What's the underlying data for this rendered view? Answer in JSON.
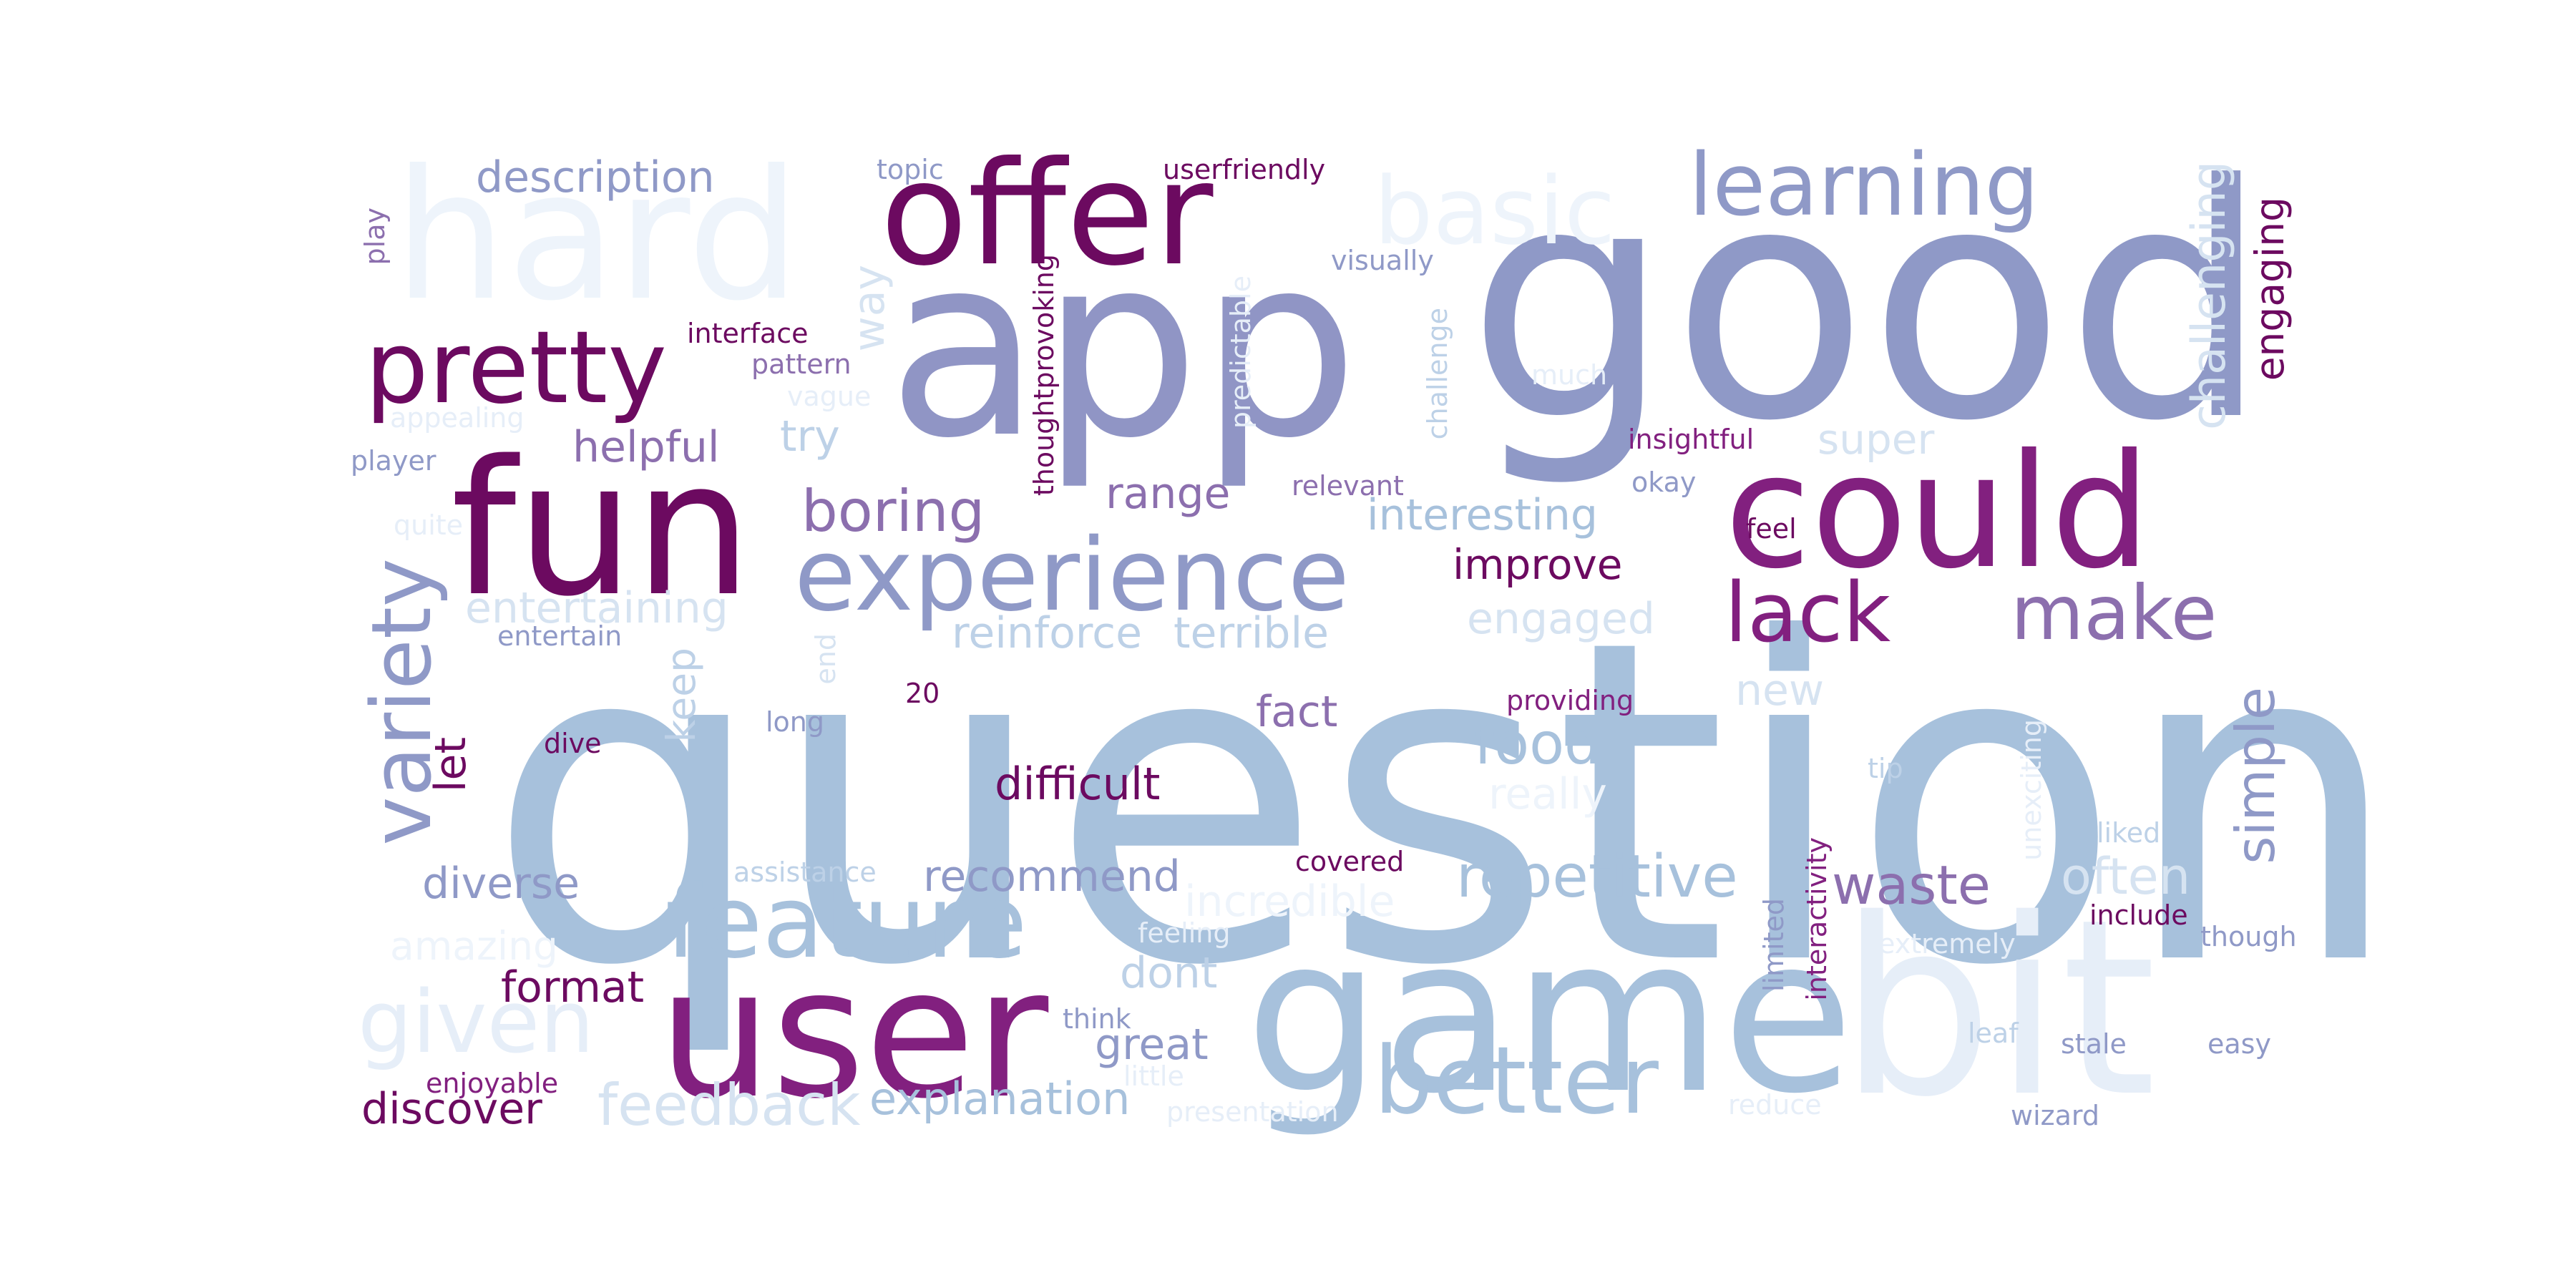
{
  "palette": {
    "plum": "#6c0a60",
    "purple": "#82207f",
    "mauve": "#8c6fae",
    "lavender": "#9095c5",
    "periwinkle": "#8f99c7",
    "steel": "#a7c1dc",
    "paleblue": "#bdd1e7",
    "pale": "#d6e3f1",
    "faint": "#e6eef8",
    "ghost": "#eef4fb"
  },
  "words": [
    {
      "text": "question",
      "color": "steel"
    },
    {
      "text": "good",
      "color": "periwinkle"
    },
    {
      "text": "app",
      "color": "lavender"
    },
    {
      "text": "game",
      "color": "steel"
    },
    {
      "text": "bit",
      "color": "faint"
    },
    {
      "text": "hard",
      "color": "ghost"
    },
    {
      "text": "fun",
      "color": "plum"
    },
    {
      "text": "user",
      "color": "purple"
    },
    {
      "text": "offer",
      "color": "plum"
    },
    {
      "text": "could",
      "color": "purple"
    },
    {
      "text": "experience",
      "color": "periwinkle"
    },
    {
      "text": "pretty",
      "color": "plum"
    },
    {
      "text": "feature",
      "color": "steel"
    },
    {
      "text": "learning",
      "color": "periwinkle"
    },
    {
      "text": "basic",
      "color": "ghost"
    },
    {
      "text": "better",
      "color": "steel"
    },
    {
      "text": "given",
      "color": "faint"
    },
    {
      "text": "variety",
      "color": "periwinkle"
    },
    {
      "text": "lack",
      "color": "purple"
    },
    {
      "text": "make",
      "color": "mauve"
    },
    {
      "text": "boring",
      "color": "mauve"
    },
    {
      "text": "repetitive",
      "color": "steel"
    },
    {
      "text": "simple",
      "color": "periwinkle"
    },
    {
      "text": "challenging",
      "color": "pale"
    },
    {
      "text": "engaging",
      "color": "plum"
    },
    {
      "text": "description",
      "color": "periwinkle"
    },
    {
      "text": "helpful",
      "color": "mauve"
    },
    {
      "text": "interesting",
      "color": "steel"
    },
    {
      "text": "improve",
      "color": "plum"
    },
    {
      "text": "entertaining",
      "color": "pale"
    },
    {
      "text": "reinforce",
      "color": "paleblue"
    },
    {
      "text": "terrible",
      "color": "paleblue"
    },
    {
      "text": "engaged",
      "color": "pale"
    },
    {
      "text": "waste",
      "color": "mauve"
    },
    {
      "text": "often",
      "color": "pale"
    },
    {
      "text": "difficult",
      "color": "plum"
    },
    {
      "text": "food",
      "color": "steel"
    },
    {
      "text": "fact",
      "color": "mauve"
    },
    {
      "text": "range",
      "color": "mauve"
    },
    {
      "text": "try",
      "color": "paleblue"
    },
    {
      "text": "super",
      "color": "pale"
    },
    {
      "text": "way",
      "color": "pale"
    },
    {
      "text": "keep",
      "color": "paleblue"
    },
    {
      "text": "let",
      "color": "plum"
    },
    {
      "text": "diverse",
      "color": "periwinkle"
    },
    {
      "text": "recommend",
      "color": "periwinkle"
    },
    {
      "text": "incredible",
      "color": "ghost"
    },
    {
      "text": "format",
      "color": "plum"
    },
    {
      "text": "dont",
      "color": "paleblue"
    },
    {
      "text": "great",
      "color": "periwinkle"
    },
    {
      "text": "feedback",
      "color": "pale"
    },
    {
      "text": "explanation",
      "color": "steel"
    },
    {
      "text": "discover",
      "color": "plum"
    },
    {
      "text": "amazing",
      "color": "ghost"
    },
    {
      "text": "new",
      "color": "pale"
    },
    {
      "text": "really",
      "color": "ghost"
    },
    {
      "text": "interface",
      "color": "plum"
    },
    {
      "text": "pattern",
      "color": "mauve"
    },
    {
      "text": "vague",
      "color": "faint"
    },
    {
      "text": "appealing",
      "color": "faint"
    },
    {
      "text": "player",
      "color": "periwinkle"
    },
    {
      "text": "quite",
      "color": "faint"
    },
    {
      "text": "entertain",
      "color": "periwinkle"
    },
    {
      "text": "topic",
      "color": "periwinkle"
    },
    {
      "text": "userfriendly",
      "color": "plum"
    },
    {
      "text": "visually",
      "color": "periwinkle"
    },
    {
      "text": "thoughtprovoking",
      "color": "plum"
    },
    {
      "text": "predictable",
      "color": "faint"
    },
    {
      "text": "challenge",
      "color": "paleblue"
    },
    {
      "text": "much",
      "color": "faint"
    },
    {
      "text": "insightful",
      "color": "purple"
    },
    {
      "text": "okay",
      "color": "periwinkle"
    },
    {
      "text": "relevant",
      "color": "mauve"
    },
    {
      "text": "feel",
      "color": "plum"
    },
    {
      "text": "play",
      "color": "mauve"
    },
    {
      "text": "end",
      "color": "pale"
    },
    {
      "text": "20",
      "color": "plum"
    },
    {
      "text": "long",
      "color": "periwinkle"
    },
    {
      "text": "dive",
      "color": "plum"
    },
    {
      "text": "providing",
      "color": "purple"
    },
    {
      "text": "tip",
      "color": "paleblue"
    },
    {
      "text": "liked",
      "color": "paleblue"
    },
    {
      "text": "unexciting",
      "color": "faint"
    },
    {
      "text": "assistance",
      "color": "paleblue"
    },
    {
      "text": "covered",
      "color": "plum"
    },
    {
      "text": "include",
      "color": "plum"
    },
    {
      "text": "though",
      "color": "periwinkle"
    },
    {
      "text": "extremely",
      "color": "faint"
    },
    {
      "text": "interactivity",
      "color": "purple"
    },
    {
      "text": "limited",
      "color": "periwinkle"
    },
    {
      "text": "feeling",
      "color": "faint"
    },
    {
      "text": "think",
      "color": "periwinkle"
    },
    {
      "text": "little",
      "color": "faint"
    },
    {
      "text": "presentation",
      "color": "faint"
    },
    {
      "text": "reduce",
      "color": "faint"
    },
    {
      "text": "wizard",
      "color": "periwinkle"
    },
    {
      "text": "leaf",
      "color": "paleblue"
    },
    {
      "text": "stale",
      "color": "periwinkle"
    },
    {
      "text": "easy",
      "color": "periwinkle"
    },
    {
      "text": "enjoyable",
      "color": "purple"
    }
  ]
}
